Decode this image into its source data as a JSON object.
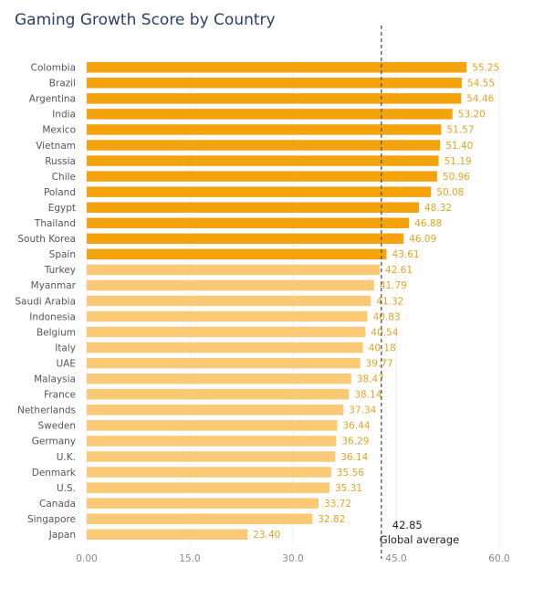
{
  "chart_data": {
    "type": "bar",
    "orientation": "horizontal",
    "title": "Gaming Growth Score by Country",
    "categories": [
      "Colombia",
      "Brazil",
      "Argentina",
      "India",
      "Mexico",
      "Vietnam",
      "Russia",
      "Chile",
      "Poland",
      "Egypt",
      "Thailand",
      "South Korea",
      "Spain",
      "Turkey",
      "Myanmar",
      "Saudi Arabia",
      "Indonesia",
      "Belgium",
      "Italy",
      "UAE",
      "Malaysia",
      "France",
      "Netherlands",
      "Sweden",
      "Germany",
      "U.K.",
      "Denmark",
      "U.S.",
      "Canada",
      "Singapore",
      "Japan"
    ],
    "values": [
      55.25,
      54.55,
      54.46,
      53.2,
      51.57,
      51.4,
      51.19,
      50.96,
      50.08,
      48.32,
      46.88,
      46.09,
      43.61,
      42.61,
      41.79,
      41.32,
      40.83,
      40.54,
      40.18,
      39.77,
      38.47,
      38.14,
      37.34,
      36.44,
      36.29,
      36.14,
      35.56,
      35.31,
      33.72,
      32.82,
      23.4
    ],
    "value_labels": [
      "55.25",
      "54.55",
      "54.46",
      "53.20",
      "51.57",
      "51.40",
      "51.19",
      "50.96",
      "50.08",
      "48.32",
      "46.88",
      "46.09",
      "43.61",
      "42.61",
      "41.79",
      "41.32",
      "40.83",
      "40.54",
      "40.18",
      "39.77",
      "38.47",
      "38.14",
      "37.34",
      "36.44",
      "36.29",
      "36.14",
      "35.56",
      "35.31",
      "33.72",
      "32.82",
      "23.40"
    ],
    "xlim": [
      0,
      60
    ],
    "x_ticks": [
      "0.00",
      "15.0",
      "30.0",
      "45.0",
      "60.0"
    ],
    "x_tick_values": [
      0,
      15,
      30,
      45,
      60
    ],
    "grid": "vertical",
    "reference_line": {
      "value": 42.85,
      "label_value": "42.85",
      "label": "Global average"
    },
    "colors": {
      "above_average": "#f4a30c",
      "below_average": "#f9c976",
      "value_label": "#e0a526",
      "title": "#2c3e6b",
      "reference_line": "#555555"
    }
  }
}
